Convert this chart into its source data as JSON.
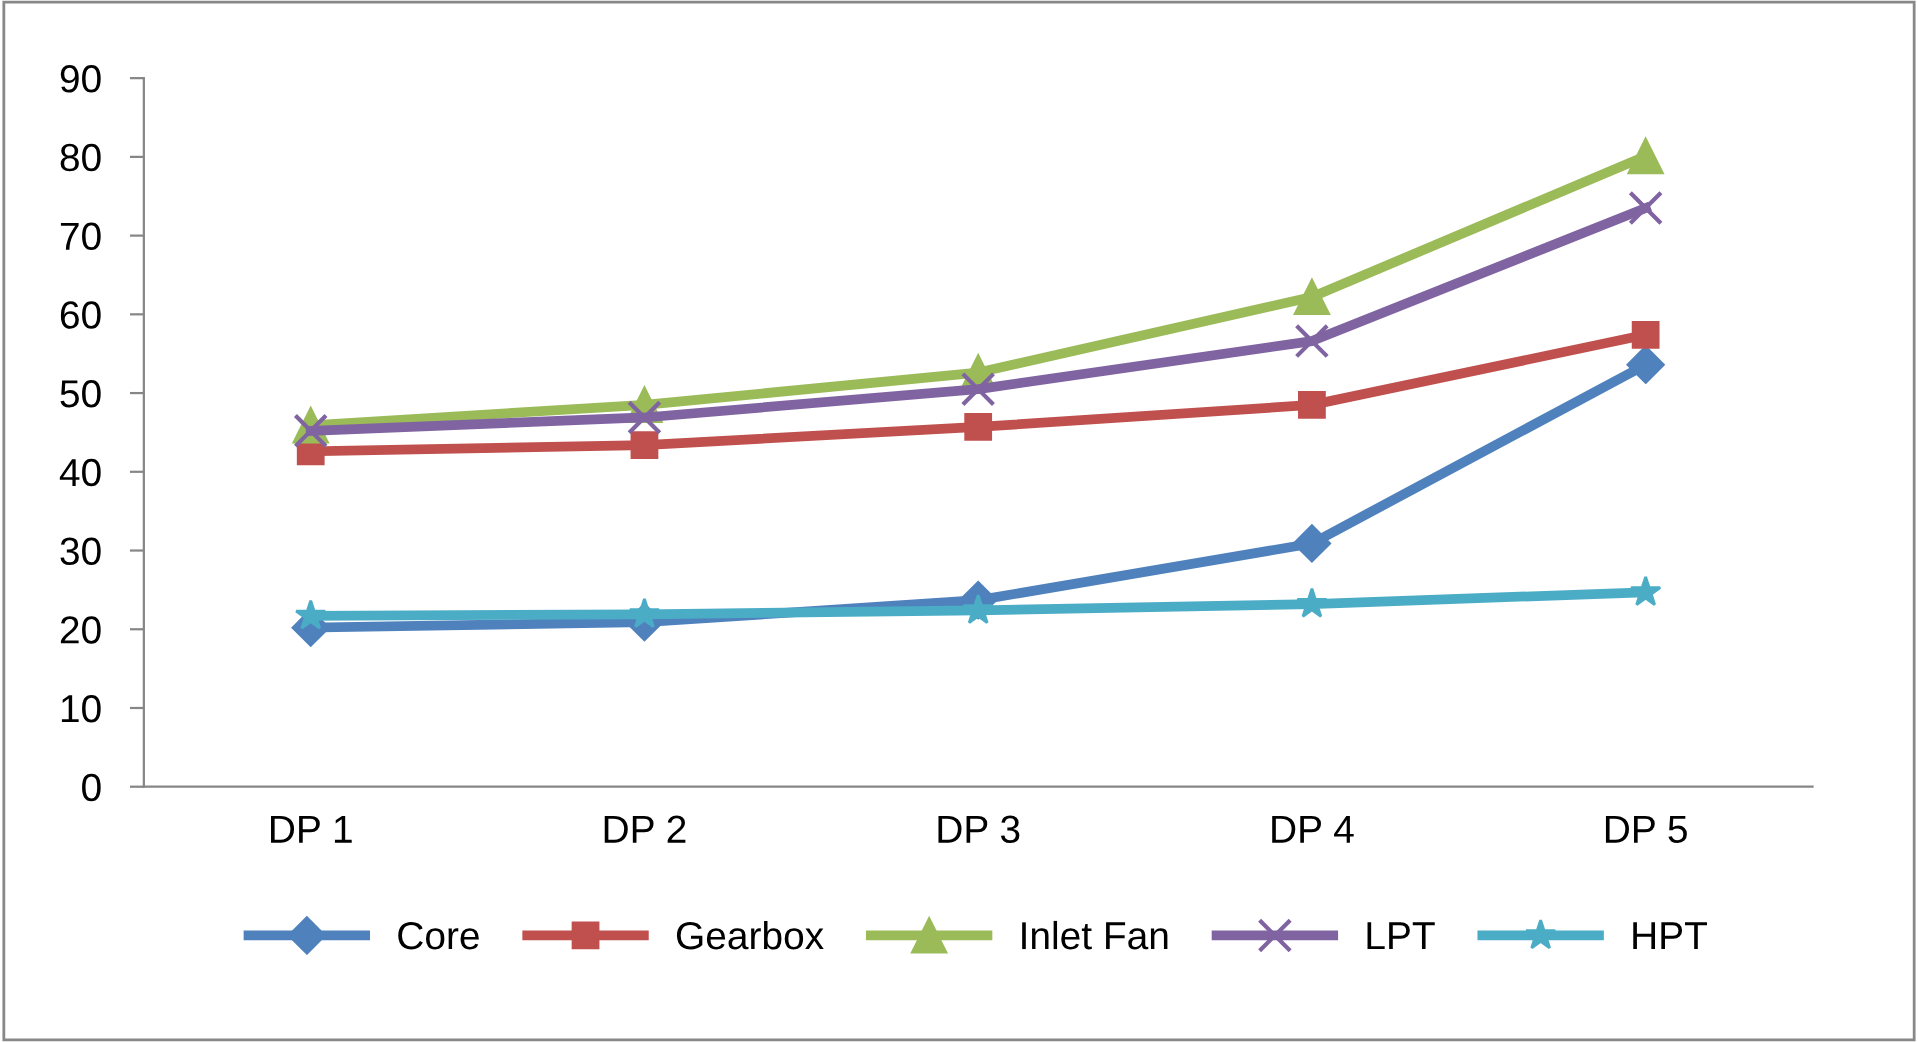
{
  "chart_data": {
    "type": "line",
    "categories": [
      "DP 1",
      "DP 2",
      "DP 3",
      "DP 4",
      "DP 5"
    ],
    "series": [
      {
        "name": "Core",
        "color": "#4f81bd",
        "marker": "diamond",
        "values": [
          20.2,
          20.9,
          23.7,
          30.9,
          53.6
        ]
      },
      {
        "name": "Gearbox",
        "color": "#c0504d",
        "marker": "square",
        "values": [
          42.6,
          43.4,
          45.7,
          48.5,
          57.4
        ]
      },
      {
        "name": "Inlet Fan",
        "color": "#9bbb59",
        "marker": "triangle",
        "values": [
          45.9,
          48.5,
          52.6,
          62.2,
          80.1
        ]
      },
      {
        "name": "LPT",
        "color": "#8064a2",
        "marker": "cross",
        "values": [
          45.2,
          46.9,
          50.5,
          56.6,
          73.5
        ]
      },
      {
        "name": "HPT",
        "color": "#4bacc6",
        "marker": "star",
        "values": [
          21.7,
          21.9,
          22.4,
          23.2,
          24.7
        ]
      }
    ],
    "ylim": [
      0,
      90
    ],
    "yticks": [
      0,
      10,
      20,
      30,
      40,
      50,
      60,
      70,
      80,
      90
    ],
    "grid": false,
    "legend": "bottom",
    "line_style": "solid"
  }
}
